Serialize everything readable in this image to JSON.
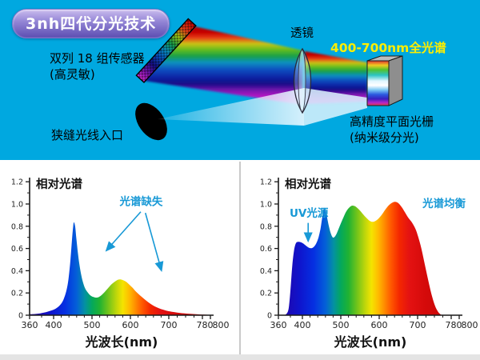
{
  "colors": {
    "background": "#00a8e0",
    "panel": "#ffffff",
    "annotation_blue": "#1899d6",
    "spectrum_label_yellow": "#ffee00",
    "divider": "#c9c9c9",
    "axis": "#1a1a1a"
  },
  "badge": {
    "label": "3nh四代分光技术"
  },
  "diagram": {
    "sensor_label": {
      "line1": "双列 18 组传感器",
      "line2": "(高灵敏)"
    },
    "lens_label": "透镜",
    "full_spectrum_label": "400-700nm全光谱",
    "slit_label": "狭缝光线入口",
    "grating_label": {
      "line1": "高精度平面光栅",
      "line2": "(纳米级分光)"
    }
  },
  "chart_data": [
    {
      "type": "area",
      "title": "相对光谱",
      "xlabel": "光波长(nm)",
      "ylabel": "",
      "xlim": [
        360,
        800
      ],
      "ylim": [
        0,
        1.2
      ],
      "grid": false,
      "x_ticks": [
        360,
        400,
        500,
        600,
        700,
        780,
        800
      ],
      "x_tick_labels": [
        "360",
        "400",
        "500",
        "600",
        "700",
        "780",
        "800"
      ],
      "y_ticks": [
        0,
        0.2,
        0.4,
        0.6,
        0.8,
        1.0,
        1.2
      ],
      "y_tick_labels": [
        "0",
        "0.2",
        "0.4",
        "0.6",
        "0.8",
        "1.0",
        "1.2"
      ],
      "x_minor_step": 20,
      "y_minor_step": 0.1,
      "gradient_stops": [
        [
          360,
          "#2800a0"
        ],
        [
          395,
          "#0f14cc"
        ],
        [
          430,
          "#0530e2"
        ],
        [
          460,
          "#0460d8"
        ],
        [
          482,
          "#0492a0"
        ],
        [
          500,
          "#04a85c"
        ],
        [
          520,
          "#20b232"
        ],
        [
          545,
          "#7cc618"
        ],
        [
          565,
          "#c4d80a"
        ],
        [
          580,
          "#f4e400"
        ],
        [
          597,
          "#ffbc00"
        ],
        [
          612,
          "#ff9000"
        ],
        [
          630,
          "#ff5a00"
        ],
        [
          652,
          "#f42800"
        ],
        [
          678,
          "#e41212"
        ],
        [
          720,
          "#d40a0a"
        ],
        [
          800,
          "#c40606"
        ]
      ],
      "points": [
        [
          360,
          0.008
        ],
        [
          372,
          0.012
        ],
        [
          383,
          0.022
        ],
        [
          392,
          0.035
        ],
        [
          400,
          0.05
        ],
        [
          408,
          0.065
        ],
        [
          415,
          0.085
        ],
        [
          422,
          0.115
        ],
        [
          428,
          0.16
        ],
        [
          434,
          0.23
        ],
        [
          439,
          0.33
        ],
        [
          444,
          0.5
        ],
        [
          448,
          0.68
        ],
        [
          451,
          0.8
        ],
        [
          453,
          0.835
        ],
        [
          456,
          0.8
        ],
        [
          459,
          0.7
        ],
        [
          463,
          0.57
        ],
        [
          467,
          0.46
        ],
        [
          472,
          0.36
        ],
        [
          477,
          0.29
        ],
        [
          483,
          0.235
        ],
        [
          490,
          0.2
        ],
        [
          497,
          0.175
        ],
        [
          504,
          0.163
        ],
        [
          510,
          0.158
        ],
        [
          517,
          0.162
        ],
        [
          524,
          0.178
        ],
        [
          532,
          0.205
        ],
        [
          541,
          0.24
        ],
        [
          550,
          0.275
        ],
        [
          559,
          0.3
        ],
        [
          567,
          0.318
        ],
        [
          574,
          0.322
        ],
        [
          581,
          0.315
        ],
        [
          589,
          0.3
        ],
        [
          597,
          0.275
        ],
        [
          606,
          0.245
        ],
        [
          615,
          0.21
        ],
        [
          625,
          0.178
        ],
        [
          635,
          0.148
        ],
        [
          646,
          0.118
        ],
        [
          657,
          0.092
        ],
        [
          668,
          0.072
        ],
        [
          680,
          0.055
        ],
        [
          693,
          0.042
        ],
        [
          706,
          0.032
        ],
        [
          720,
          0.024
        ],
        [
          735,
          0.017
        ],
        [
          750,
          0.012
        ],
        [
          765,
          0.009
        ],
        [
          780,
          0.006
        ],
        [
          800,
          0.003
        ]
      ],
      "annotations": [
        {
          "text": "光谱缺失",
          "wl": 628,
          "v": 0.99,
          "color": "#1899d6"
        }
      ],
      "arrows": [
        {
          "from": [
            627,
            0.93
          ],
          "to": [
            537,
            0.58
          ],
          "color": "#1899d6"
        },
        {
          "from": [
            639,
            0.92
          ],
          "to": [
            681,
            0.4
          ],
          "color": "#1899d6"
        }
      ]
    },
    {
      "type": "area",
      "title": "相对光谱",
      "xlabel": "光波长(nm)",
      "ylabel": "",
      "xlim": [
        360,
        800
      ],
      "ylim": [
        0,
        1.2
      ],
      "grid": false,
      "x_ticks": [
        360,
        400,
        500,
        600,
        700,
        780,
        800
      ],
      "x_tick_labels": [
        "360",
        "400",
        "500",
        "600",
        "700",
        "780",
        "800"
      ],
      "y_ticks": [
        0,
        0.2,
        0.4,
        0.6,
        0.8,
        1.0,
        1.2
      ],
      "y_tick_labels": [
        "0",
        "0.2",
        "0.4",
        "0.6",
        "0.8",
        "1.0",
        "1.2"
      ],
      "x_minor_step": 20,
      "y_minor_step": 0.1,
      "gradient_stops": [
        [
          360,
          "#2800a0"
        ],
        [
          395,
          "#0f14cc"
        ],
        [
          430,
          "#0530e2"
        ],
        [
          460,
          "#0460d8"
        ],
        [
          482,
          "#0492a0"
        ],
        [
          500,
          "#04a85c"
        ],
        [
          520,
          "#20b232"
        ],
        [
          545,
          "#7cc618"
        ],
        [
          565,
          "#c4d80a"
        ],
        [
          580,
          "#f4e400"
        ],
        [
          597,
          "#ffbc00"
        ],
        [
          612,
          "#ff9000"
        ],
        [
          630,
          "#ff5a00"
        ],
        [
          652,
          "#f42800"
        ],
        [
          678,
          "#e41212"
        ],
        [
          720,
          "#d40a0a"
        ],
        [
          800,
          "#c40606"
        ]
      ],
      "points": [
        [
          360,
          0
        ],
        [
          368,
          0.003
        ],
        [
          373,
          0.01
        ],
        [
          377,
          0.06
        ],
        [
          380,
          0.22
        ],
        [
          383,
          0.44
        ],
        [
          386,
          0.58
        ],
        [
          389,
          0.645
        ],
        [
          393,
          0.66
        ],
        [
          398,
          0.655
        ],
        [
          404,
          0.64
        ],
        [
          411,
          0.62
        ],
        [
          418,
          0.605
        ],
        [
          424,
          0.603
        ],
        [
          430,
          0.615
        ],
        [
          436,
          0.645
        ],
        [
          442,
          0.7
        ],
        [
          447,
          0.775
        ],
        [
          451,
          0.865
        ],
        [
          454,
          0.935
        ],
        [
          457,
          0.965
        ],
        [
          460,
          0.95
        ],
        [
          464,
          0.885
        ],
        [
          469,
          0.8
        ],
        [
          474,
          0.735
        ],
        [
          479,
          0.7
        ],
        [
          484,
          0.705
        ],
        [
          490,
          0.74
        ],
        [
          497,
          0.8
        ],
        [
          505,
          0.865
        ],
        [
          513,
          0.925
        ],
        [
          521,
          0.965
        ],
        [
          529,
          0.985
        ],
        [
          537,
          0.98
        ],
        [
          546,
          0.955
        ],
        [
          555,
          0.92
        ],
        [
          564,
          0.885
        ],
        [
          573,
          0.855
        ],
        [
          581,
          0.84
        ],
        [
          589,
          0.845
        ],
        [
          597,
          0.865
        ],
        [
          606,
          0.9
        ],
        [
          615,
          0.945
        ],
        [
          624,
          0.985
        ],
        [
          633,
          1.01
        ],
        [
          641,
          1.02
        ],
        [
          649,
          1.01
        ],
        [
          658,
          0.975
        ],
        [
          667,
          0.925
        ],
        [
          676,
          0.875
        ],
        [
          685,
          0.835
        ],
        [
          694,
          0.78
        ],
        [
          701,
          0.71
        ],
        [
          709,
          0.6
        ],
        [
          717,
          0.46
        ],
        [
          725,
          0.32
        ],
        [
          733,
          0.19
        ],
        [
          741,
          0.09
        ],
        [
          748,
          0.035
        ],
        [
          754,
          0.01
        ],
        [
          760,
          0.002
        ],
        [
          780,
          0
        ],
        [
          800,
          0
        ]
      ],
      "annotations": [
        {
          "text": "UV光源",
          "wl": 417,
          "v": 0.885,
          "color": "#1899d6"
        },
        {
          "text": "光谱均衡",
          "wl": 763,
          "v": 0.97,
          "color": "#1899d6"
        }
      ],
      "arrows": [
        {
          "from": [
            415,
            0.83
          ],
          "to": [
            415,
            0.665
          ],
          "color": "#1899d6"
        }
      ]
    }
  ]
}
